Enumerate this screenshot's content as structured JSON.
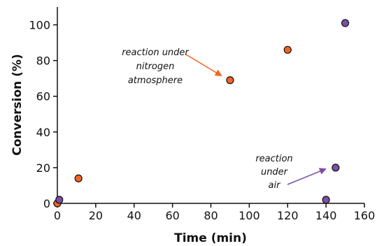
{
  "chart_data": {
    "type": "scatter",
    "title": "",
    "xlabel": "Time (min)",
    "ylabel": "Conversion (%)",
    "xlim": [
      0,
      160
    ],
    "ylim": [
      0,
      110
    ],
    "x_ticks": [
      0,
      20,
      40,
      60,
      80,
      100,
      120,
      140,
      160
    ],
    "y_ticks": [
      0,
      20,
      40,
      60,
      80,
      100
    ],
    "grid": false,
    "legend": "none",
    "series": [
      {
        "color": "#f26522",
        "points": [
          {
            "x": 0,
            "y": 0
          },
          {
            "x": 11,
            "y": 14
          },
          {
            "x": 90,
            "y": 69
          },
          {
            "x": 120,
            "y": 86
          }
        ]
      },
      {
        "color": "#7b4fa6",
        "points": [
          {
            "x": 1,
            "y": 2
          },
          {
            "x": 140,
            "y": 2
          },
          {
            "x": 145,
            "y": 20
          },
          {
            "x": 150,
            "y": 101
          }
        ]
      }
    ],
    "annotations": [
      {
        "lines": [
          "reaction under",
          "nitrogen",
          "atmosphere"
        ],
        "color": "#f26522"
      },
      {
        "lines": [
          "reaction",
          "under",
          "air"
        ],
        "color": "#7b4fa6"
      }
    ]
  }
}
